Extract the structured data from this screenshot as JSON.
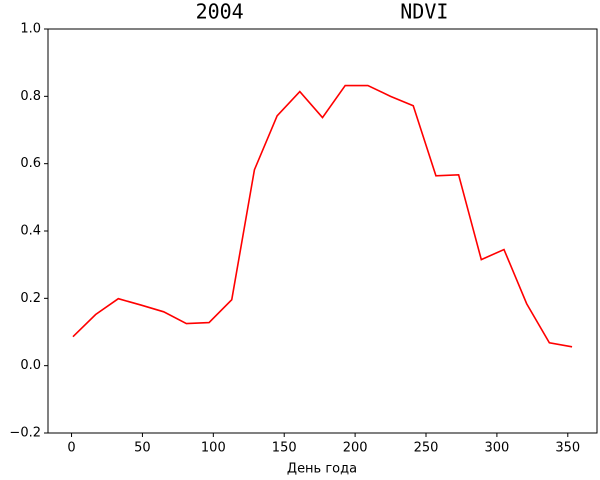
{
  "chart_data": {
    "type": "line",
    "title": "2004             NDVI",
    "xlabel": "День года",
    "x": [
      1,
      17,
      33,
      49,
      65,
      81,
      97,
      113,
      129,
      145,
      161,
      177,
      193,
      209,
      225,
      241,
      257,
      273,
      289,
      305,
      321,
      337,
      353
    ],
    "series": [
      {
        "color": "#ff0000",
        "values": [
          0.086,
          0.152,
          0.199,
          0.18,
          0.16,
          0.125,
          0.128,
          0.196,
          0.582,
          0.742,
          0.814,
          0.737,
          0.832,
          0.832,
          0.8,
          0.772,
          0.564,
          0.567,
          0.315,
          0.345,
          0.184,
          0.068,
          0.056
        ]
      }
    ],
    "xlim": [
      -16.6,
      370.6
    ],
    "xticks": [
      0,
      50,
      100,
      150,
      200,
      250,
      300,
      350
    ],
    "ylim": [
      -0.2,
      1.0
    ],
    "yticks": [
      {
        "value": -0.2,
        "label": "−0.2"
      },
      {
        "value": 0,
        "label": "0.0"
      },
      0.2,
      0.4,
      0.6,
      0.8,
      {
        "value": 1.0,
        "label": "1.0"
      }
    ]
  }
}
